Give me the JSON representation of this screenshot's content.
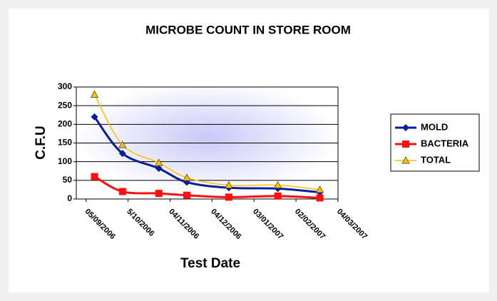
{
  "chart_data": {
    "type": "line",
    "title": "MICROBE COUNT IN STORE ROOM",
    "xlabel": "Test Date",
    "ylabel": "C.F.U",
    "x": [
      "2006-09-11",
      "2006-10-01",
      "2006-10-27",
      "2006-11-16",
      "2006-12-16",
      "2007-01-20",
      "2007-02-19"
    ],
    "xlim": [
      "2006-08-29",
      "2007-03-04"
    ],
    "xticks": [
      {
        "value": "2006-09-05",
        "label": "05/09/2006"
      },
      {
        "value": "2006-10-05",
        "label": "5/10/2006"
      },
      {
        "value": "2006-11-04",
        "label": "04/11/2006"
      },
      {
        "value": "2006-12-04",
        "label": "04/12/2006"
      },
      {
        "value": "2007-01-03",
        "label": "03/01/2007"
      },
      {
        "value": "2007-02-02",
        "label": "02/02/2007"
      },
      {
        "value": "2007-03-04",
        "label": "04/03/2007"
      }
    ],
    "ylim": [
      0,
      300
    ],
    "yticks": [
      0,
      50,
      100,
      150,
      200,
      250,
      300
    ],
    "grid": true,
    "legend": "right",
    "series": [
      {
        "name": "MOLD",
        "color": "#0a1e9a",
        "marker": "diamond",
        "values": [
          220,
          122,
          82,
          45,
          30,
          28,
          18
        ]
      },
      {
        "name": "BACTERIA",
        "color": "#ff1010",
        "marker": "square",
        "values": [
          60,
          20,
          15,
          10,
          5,
          8,
          3
        ]
      },
      {
        "name": "TOTAL",
        "color": "#ffc000",
        "marker": "triangle",
        "values": [
          280,
          145,
          97,
          57,
          37,
          37,
          25
        ]
      }
    ]
  }
}
